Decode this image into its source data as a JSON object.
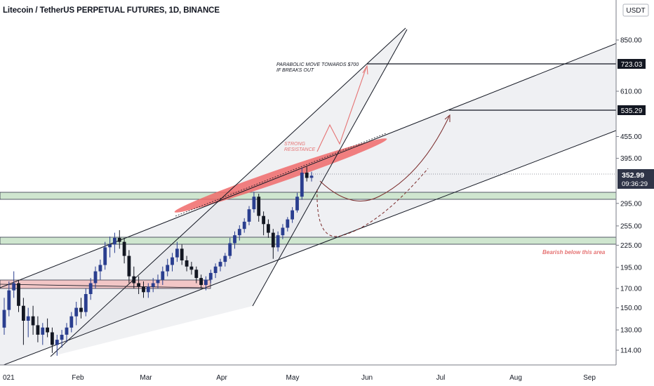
{
  "header": {
    "title": "Litecoin / TetherUS PERPETUAL FUTURES, 1D, BINANCE"
  },
  "price_scale": {
    "currency": "USDT",
    "ticks": [
      "850.00",
      "610.00",
      "455.00",
      "395.00",
      "295.00",
      "255.00",
      "225.00",
      "195.00",
      "170.00",
      "150.00",
      "130.00",
      "114.00"
    ],
    "current_price": "352.99",
    "countdown": "09:36:29",
    "markers": [
      "723.03",
      "535.29"
    ]
  },
  "time_axis": {
    "labels": [
      "021",
      "Feb",
      "Mar",
      "Apr",
      "May",
      "Jun",
      "Jul",
      "Aug",
      "Sep"
    ]
  },
  "annotations": {
    "parabolic": [
      "PARABOLIC MOVE TOWARDS $700",
      "IF BREAKS OUT"
    ],
    "resistance": [
      "STRONG",
      "RESISTANCE"
    ],
    "bearish": "Bearish below this area"
  },
  "colors": {
    "up_candle": "#2a3e8f",
    "down_candle": "#131722",
    "resistance_band": "#f06a6a",
    "support_zone": "#cfe6cf",
    "lower_zone": "#f2c6c6",
    "annotation_red": "#e57373",
    "marker_bg": "#131722",
    "price_bg": "#2f3447"
  },
  "chart_data": {
    "type": "candlestick",
    "symbol": "LTCUSDT",
    "timeframe": "1D",
    "y_scale": "log",
    "ylim": [
      104,
      1000
    ],
    "current_price": 352.99,
    "horizontal_levels": [
      723.03,
      535.29
    ],
    "zones": [
      {
        "name": "support",
        "from": 302,
        "to": 322
      },
      {
        "name": "support",
        "from": 228,
        "to": 240
      },
      {
        "name": "resistance",
        "from": 168,
        "to": 178
      }
    ],
    "ohlc": [
      {
        "x": "Jan 01",
        "o": 132,
        "h": 160,
        "l": 126,
        "c": 148
      },
      {
        "x": "Jan 03",
        "o": 148,
        "h": 178,
        "l": 142,
        "c": 168
      },
      {
        "x": "Jan 05",
        "o": 168,
        "h": 190,
        "l": 160,
        "c": 176
      },
      {
        "x": "Jan 07",
        "o": 176,
        "h": 180,
        "l": 146,
        "c": 152
      },
      {
        "x": "Jan 09",
        "o": 152,
        "h": 160,
        "l": 118,
        "c": 138
      },
      {
        "x": "Jan 11",
        "o": 138,
        "h": 150,
        "l": 124,
        "c": 142
      },
      {
        "x": "Jan 13",
        "o": 142,
        "h": 152,
        "l": 126,
        "c": 134
      },
      {
        "x": "Jan 15",
        "o": 134,
        "h": 142,
        "l": 120,
        "c": 126
      },
      {
        "x": "Jan 17",
        "o": 126,
        "h": 136,
        "l": 118,
        "c": 132
      },
      {
        "x": "Jan 19",
        "o": 132,
        "h": 140,
        "l": 124,
        "c": 128
      },
      {
        "x": "Jan 21",
        "o": 128,
        "h": 132,
        "l": 112,
        "c": 118
      },
      {
        "x": "Jan 23",
        "o": 118,
        "h": 126,
        "l": 110,
        "c": 122
      },
      {
        "x": "Jan 25",
        "o": 122,
        "h": 130,
        "l": 116,
        "c": 126
      },
      {
        "x": "Jan 27",
        "o": 126,
        "h": 136,
        "l": 120,
        "c": 132
      },
      {
        "x": "Jan 29",
        "o": 132,
        "h": 146,
        "l": 128,
        "c": 142
      },
      {
        "x": "Jan 31",
        "o": 142,
        "h": 156,
        "l": 134,
        "c": 150
      },
      {
        "x": "Feb 02",
        "o": 150,
        "h": 160,
        "l": 140,
        "c": 146
      },
      {
        "x": "Feb 04",
        "o": 146,
        "h": 170,
        "l": 142,
        "c": 164
      },
      {
        "x": "Feb 06",
        "o": 164,
        "h": 182,
        "l": 158,
        "c": 176
      },
      {
        "x": "Feb 08",
        "o": 176,
        "h": 196,
        "l": 170,
        "c": 190
      },
      {
        "x": "Feb 10",
        "o": 190,
        "h": 205,
        "l": 180,
        "c": 198
      },
      {
        "x": "Feb 12",
        "o": 198,
        "h": 230,
        "l": 192,
        "c": 222
      },
      {
        "x": "Feb 14",
        "o": 222,
        "h": 238,
        "l": 208,
        "c": 226
      },
      {
        "x": "Feb 16",
        "o": 226,
        "h": 244,
        "l": 214,
        "c": 236
      },
      {
        "x": "Feb 18",
        "o": 236,
        "h": 248,
        "l": 220,
        "c": 230
      },
      {
        "x": "Feb 20",
        "o": 230,
        "h": 236,
        "l": 200,
        "c": 210
      },
      {
        "x": "Feb 22",
        "o": 210,
        "h": 218,
        "l": 176,
        "c": 184
      },
      {
        "x": "Feb 24",
        "o": 184,
        "h": 196,
        "l": 170,
        "c": 176
      },
      {
        "x": "Feb 26",
        "o": 176,
        "h": 184,
        "l": 164,
        "c": 172
      },
      {
        "x": "Feb 28",
        "o": 172,
        "h": 178,
        "l": 160,
        "c": 166
      },
      {
        "x": "Mar 02",
        "o": 166,
        "h": 176,
        "l": 160,
        "c": 172
      },
      {
        "x": "Mar 04",
        "o": 172,
        "h": 182,
        "l": 166,
        "c": 176
      },
      {
        "x": "Mar 06",
        "o": 176,
        "h": 186,
        "l": 170,
        "c": 180
      },
      {
        "x": "Mar 08",
        "o": 180,
        "h": 196,
        "l": 174,
        "c": 190
      },
      {
        "x": "Mar 10",
        "o": 190,
        "h": 206,
        "l": 184,
        "c": 198
      },
      {
        "x": "Mar 12",
        "o": 198,
        "h": 214,
        "l": 190,
        "c": 208
      },
      {
        "x": "Mar 14",
        "o": 208,
        "h": 230,
        "l": 202,
        "c": 220
      },
      {
        "x": "Mar 16",
        "o": 220,
        "h": 226,
        "l": 198,
        "c": 204
      },
      {
        "x": "Mar 18",
        "o": 204,
        "h": 210,
        "l": 190,
        "c": 196
      },
      {
        "x": "Mar 20",
        "o": 196,
        "h": 202,
        "l": 186,
        "c": 192
      },
      {
        "x": "Mar 22",
        "o": 192,
        "h": 196,
        "l": 176,
        "c": 182
      },
      {
        "x": "Mar 24",
        "o": 182,
        "h": 186,
        "l": 170,
        "c": 174
      },
      {
        "x": "Mar 26",
        "o": 174,
        "h": 184,
        "l": 168,
        "c": 180
      },
      {
        "x": "Mar 28",
        "o": 180,
        "h": 192,
        "l": 176,
        "c": 188
      },
      {
        "x": "Mar 30",
        "o": 188,
        "h": 200,
        "l": 182,
        "c": 196
      },
      {
        "x": "Apr 01",
        "o": 196,
        "h": 206,
        "l": 190,
        "c": 202
      },
      {
        "x": "Apr 03",
        "o": 202,
        "h": 214,
        "l": 196,
        "c": 210
      },
      {
        "x": "Apr 05",
        "o": 210,
        "h": 236,
        "l": 206,
        "c": 228
      },
      {
        "x": "Apr 07",
        "o": 228,
        "h": 246,
        "l": 220,
        "c": 240
      },
      {
        "x": "Apr 09",
        "o": 240,
        "h": 256,
        "l": 232,
        "c": 250
      },
      {
        "x": "Apr 11",
        "o": 250,
        "h": 268,
        "l": 244,
        "c": 262
      },
      {
        "x": "Apr 13",
        "o": 262,
        "h": 290,
        "l": 256,
        "c": 284
      },
      {
        "x": "Apr 15",
        "o": 284,
        "h": 318,
        "l": 278,
        "c": 308
      },
      {
        "x": "Apr 17",
        "o": 308,
        "h": 314,
        "l": 262,
        "c": 272
      },
      {
        "x": "Apr 19",
        "o": 272,
        "h": 280,
        "l": 240,
        "c": 258
      },
      {
        "x": "Apr 21",
        "o": 258,
        "h": 266,
        "l": 236,
        "c": 244
      },
      {
        "x": "Apr 23",
        "o": 244,
        "h": 250,
        "l": 206,
        "c": 222
      },
      {
        "x": "Apr 25",
        "o": 222,
        "h": 246,
        "l": 216,
        "c": 240
      },
      {
        "x": "Apr 27",
        "o": 240,
        "h": 258,
        "l": 234,
        "c": 252
      },
      {
        "x": "Apr 29",
        "o": 252,
        "h": 270,
        "l": 246,
        "c": 266
      },
      {
        "x": "May 01",
        "o": 266,
        "h": 288,
        "l": 260,
        "c": 282
      },
      {
        "x": "May 03",
        "o": 282,
        "h": 316,
        "l": 278,
        "c": 308
      },
      {
        "x": "May 05",
        "o": 308,
        "h": 372,
        "l": 302,
        "c": 360
      },
      {
        "x": "May 07",
        "o": 360,
        "h": 374,
        "l": 340,
        "c": 348
      },
      {
        "x": "May 09",
        "o": 348,
        "h": 362,
        "l": 340,
        "c": 352.99
      }
    ]
  }
}
